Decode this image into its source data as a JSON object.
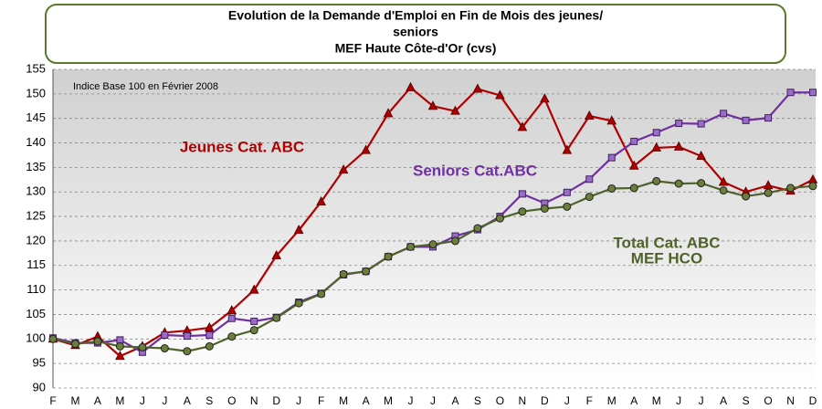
{
  "chart_data": {
    "type": "line",
    "title": [
      "Evolution de la  Demande d'Emploi en Fin de Mois des jeunes/",
      "seniors",
      "MEF Haute Côte-d'Or (cvs)"
    ],
    "annotations": [
      "Indice Base 100 en Février 2008",
      "MEF HCO"
    ],
    "categories": [
      "F",
      "M",
      "A",
      "M",
      "J",
      "J",
      "A",
      "S",
      "O",
      "N",
      "D",
      "J",
      "F",
      "M",
      "A",
      "M",
      "J",
      "J",
      "A",
      "S",
      "O",
      "N",
      "D",
      "J",
      "F",
      "M",
      "A",
      "M",
      "J",
      "J",
      "A",
      "S",
      "O",
      "N",
      "D"
    ],
    "series": [
      {
        "name": "Jeunes Cat. ABC",
        "color": "#b00000",
        "marker": "triangle",
        "values": [
          100,
          98.7,
          100.5,
          96.5,
          98.5,
          101.3,
          101.7,
          102.3,
          105.8,
          110,
          117,
          122.2,
          128,
          134.5,
          138.5,
          146,
          151.3,
          147.5,
          146.5,
          151,
          149.7,
          143.2,
          149,
          138.5,
          145.5,
          144.5,
          135.3,
          139,
          139.2,
          137.3,
          132,
          130,
          131.3,
          130.2,
          132.5
        ]
      },
      {
        "name": "Seniors Cat.ABC",
        "color": "#7030a0",
        "marker": "square",
        "values": [
          100.2,
          99.2,
          99.2,
          99.8,
          97.3,
          100.8,
          100.6,
          100.8,
          104.2,
          103.6,
          104.4,
          107.5,
          109.3,
          113.1,
          113.8,
          116.8,
          118.8,
          118.8,
          121,
          122.3,
          125,
          129.6,
          127.7,
          129.9,
          132.6,
          137,
          140.3,
          142.1,
          144,
          143.9,
          146,
          144.6,
          145.1,
          150.3,
          150.3
        ]
      },
      {
        "name": "Total Cat. ABC",
        "color": "#4f6228",
        "marker": "circle",
        "values": [
          100,
          99,
          99.5,
          98.5,
          98.3,
          98.1,
          97.5,
          98.5,
          100.5,
          101.8,
          104.3,
          107.3,
          109.2,
          113.2,
          113.8,
          116.8,
          118.8,
          119.3,
          120,
          122.6,
          124.6,
          126,
          126.6,
          127,
          129,
          130.7,
          130.8,
          132.2,
          131.7,
          131.8,
          130.3,
          129.1,
          129.8,
          130.8,
          131.2
        ]
      }
    ],
    "ylim": [
      90,
      155
    ],
    "yticks": [
      90,
      95,
      100,
      105,
      110,
      115,
      120,
      125,
      130,
      135,
      140,
      145,
      150,
      155
    ],
    "grid": true
  }
}
